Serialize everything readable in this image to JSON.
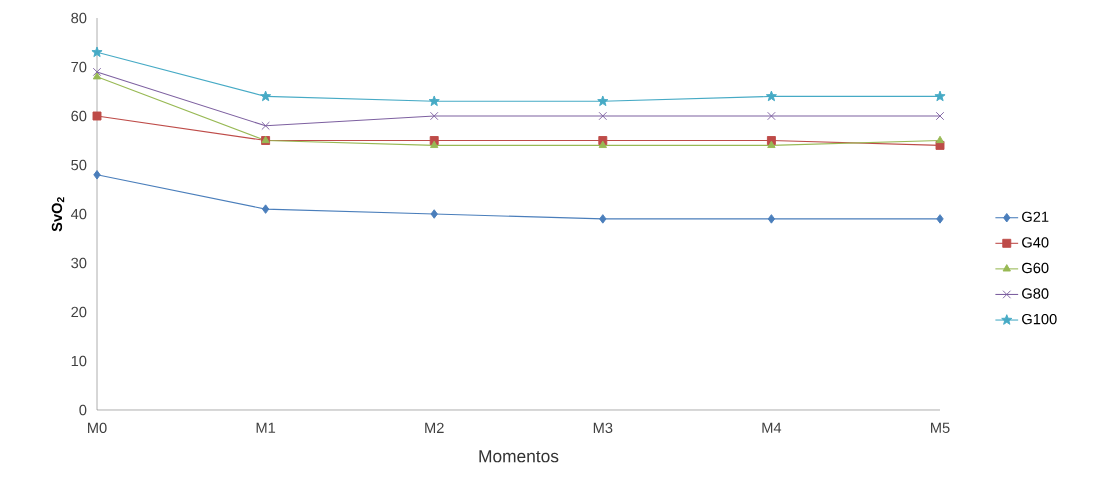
{
  "chart_data": {
    "type": "line",
    "xlabel": "Momentos",
    "ylabel": "SvO$_{2}$",
    "categories": [
      "M0",
      "M1",
      "M2",
      "M3",
      "M4",
      "M5"
    ],
    "ylim": [
      0,
      80
    ],
    "yticks": [
      0,
      10,
      20,
      30,
      40,
      50,
      60,
      70,
      80
    ],
    "grid": false,
    "legend": "right",
    "line_style": "solid",
    "series": [
      {
        "name": "G21",
        "color": "#4a7ebb",
        "marker": "diamond",
        "values": [
          48,
          41,
          40,
          39,
          39,
          39
        ]
      },
      {
        "name": "G40",
        "color": "#be4b48",
        "marker": "square",
        "values": [
          60,
          55,
          55,
          55,
          55,
          54
        ]
      },
      {
        "name": "G60",
        "color": "#98b954",
        "marker": "triangle",
        "values": [
          68,
          55,
          54,
          54,
          54,
          55
        ]
      },
      {
        "name": "G80",
        "color": "#7d60a0",
        "marker": "cross",
        "values": [
          69,
          58,
          60,
          60,
          60,
          60
        ]
      },
      {
        "name": "G100",
        "color": "#46aac5",
        "marker": "star",
        "values": [
          73,
          64,
          63,
          63,
          64,
          64
        ]
      }
    ]
  }
}
